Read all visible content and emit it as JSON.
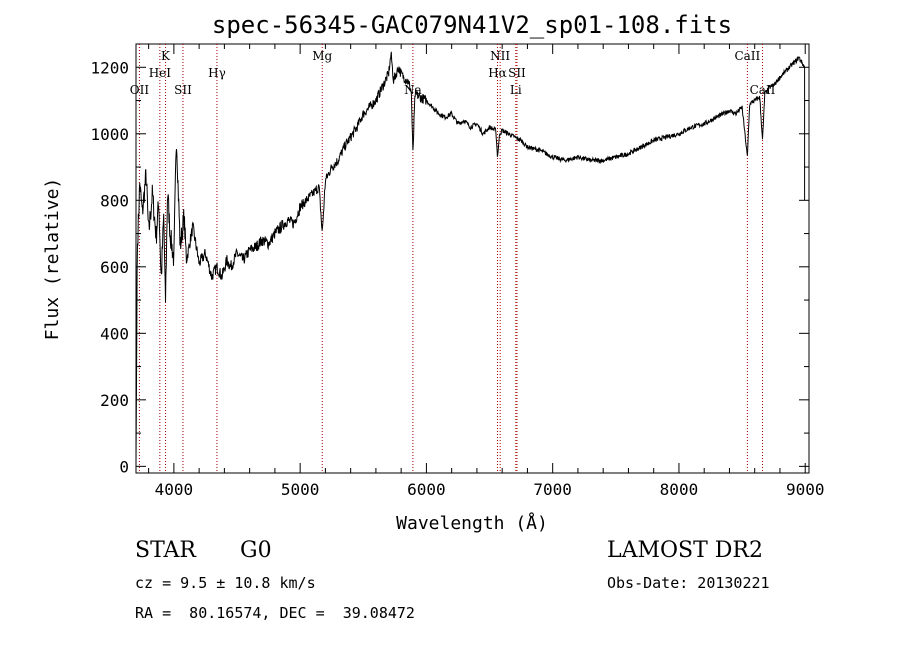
{
  "chart_data": {
    "type": "line",
    "title": "spec-56345-GAC079N41V2_sp01-108.fits",
    "xlabel": "Wavelength (Å)",
    "ylabel": "Flux (relative)",
    "xlim": [
      3700,
      9030
    ],
    "ylim": [
      -20,
      1270
    ],
    "xticks": [
      "4000",
      "5000",
      "6000",
      "7000",
      "8000",
      "9000"
    ],
    "yticks": [
      "0",
      "200",
      "400",
      "600",
      "800",
      "1000",
      "1200"
    ],
    "grid": false,
    "line_color": "#000000",
    "marker_color": "#aa0000",
    "series": [
      {
        "x": [
          3700,
          3710,
          3730,
          3750,
          3780,
          3800,
          3830,
          3860,
          3880,
          3900,
          3920,
          3933,
          3950,
          3970,
          4000,
          4020,
          4050,
          4080,
          4100,
          4150,
          4200,
          4250,
          4300,
          4340,
          4380,
          4420,
          4450,
          4500,
          4550,
          4600,
          4650,
          4700,
          4750,
          4800,
          4850,
          4900,
          4950,
          5000,
          5050,
          5100,
          5150,
          5175,
          5200,
          5250,
          5300,
          5350,
          5400,
          5450,
          5500,
          5550,
          5600,
          5650,
          5700,
          5720,
          5740,
          5760,
          5780,
          5800,
          5820,
          5850,
          5880,
          5893,
          5910,
          5950,
          6000,
          6050,
          6100,
          6150,
          6200,
          6250,
          6300,
          6350,
          6400,
          6450,
          6500,
          6550,
          6563,
          6580,
          6600,
          6650,
          6700,
          6750,
          6800,
          6900,
          7000,
          7100,
          7200,
          7300,
          7400,
          7500,
          7600,
          7700,
          7800,
          7900,
          8000,
          8100,
          8200,
          8300,
          8400,
          8450,
          8500,
          8542,
          8560,
          8600,
          8640,
          8662,
          8680,
          8720,
          8760,
          8800,
          8850,
          8900,
          8930,
          8950,
          8980,
          8995
        ],
        "y": [
          10,
          650,
          850,
          760,
          880,
          700,
          820,
          690,
          800,
          560,
          760,
          480,
          830,
          700,
          620,
          1000,
          660,
          750,
          620,
          720,
          610,
          640,
          570,
          600,
          570,
          620,
          600,
          640,
          620,
          650,
          660,
          680,
          670,
          700,
          720,
          740,
          730,
          780,
          800,
          820,
          840,
          700,
          860,
          900,
          920,
          960,
          990,
          1020,
          1060,
          1080,
          1100,
          1140,
          1180,
          1240,
          1160,
          1180,
          1200,
          1180,
          1170,
          1160,
          1130,
          940,
          1120,
          1110,
          1100,
          1080,
          1060,
          1050,
          1060,
          1030,
          1040,
          1020,
          1030,
          1000,
          1020,
          1010,
          930,
          1000,
          1010,
          1000,
          990,
          980,
          960,
          950,
          930,
          920,
          930,
          920,
          920,
          930,
          940,
          960,
          980,
          990,
          1000,
          1020,
          1030,
          1050,
          1070,
          1060,
          1080,
          930,
          1090,
          1100,
          1110,
          980,
          1120,
          1140,
          1150,
          1170,
          1190,
          1210,
          1220,
          1230,
          1210,
          1200
        ]
      }
    ],
    "line_markers": [
      {
        "label": "OII",
        "x": 3727,
        "row": 3
      },
      {
        "label": "K",
        "x": 3934,
        "row": 1
      },
      {
        "label": "HeI",
        "x": 3889,
        "row": 2
      },
      {
        "label": "SII",
        "x": 4072,
        "row": 3
      },
      {
        "label": "Hγ",
        "x": 4341,
        "row": 2
      },
      {
        "label": "Mg",
        "x": 5175,
        "row": 1
      },
      {
        "label": "Na",
        "x": 5893,
        "row": 3
      },
      {
        "label": "NII",
        "x": 6584,
        "row": 1
      },
      {
        "label": "Hα",
        "x": 6563,
        "row": 2
      },
      {
        "label": "SII",
        "x": 6717,
        "row": 2
      },
      {
        "label": "Li",
        "x": 6708,
        "row": 3
      },
      {
        "label": "CaII",
        "x": 8542,
        "row": 1
      },
      {
        "label": "CaII",
        "x": 8662,
        "row": 3
      }
    ]
  },
  "footer": {
    "object_type": "STAR",
    "subclass": "G0",
    "survey": "LAMOST DR2",
    "cz": "cz = 9.5 ± 10.8 km/s",
    "obs_date": "Obs-Date: 20130221",
    "radec": "RA =  80.16574, DEC =  39.08472"
  }
}
